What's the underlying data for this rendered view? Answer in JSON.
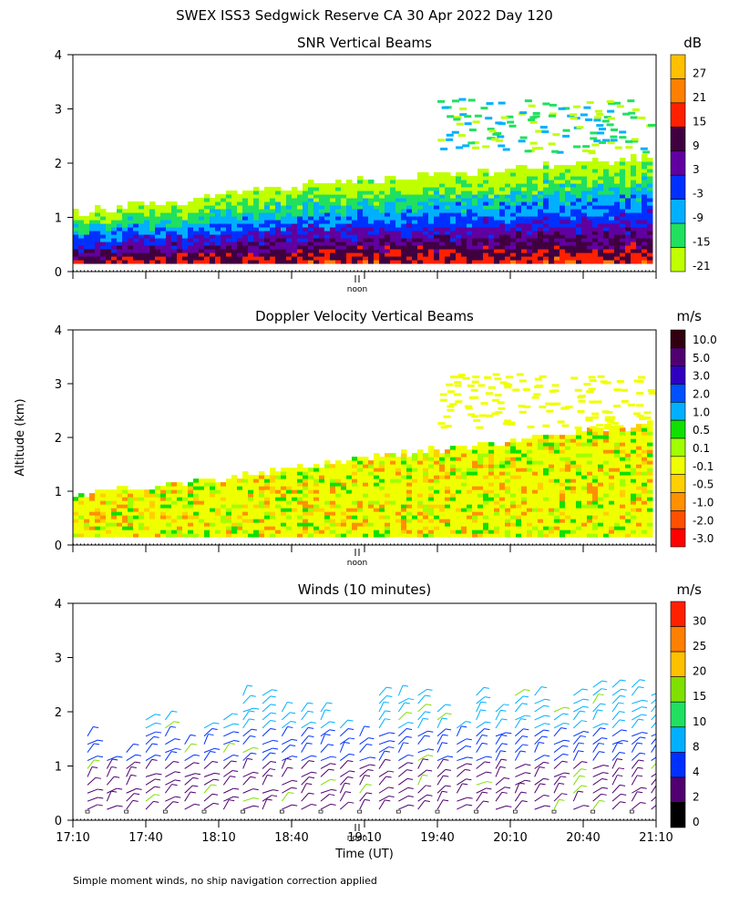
{
  "page_title": "SWEX ISS3 Sedgwick Reserve CA  30 Apr 2022 Day 120",
  "y_axis_label": "Altitude (km)",
  "x_axis_label": "Time (UT)",
  "footnote": "Simple moment winds, no ship navigation correction applied",
  "noon_label": "noon",
  "chart_data": [
    {
      "type": "heatmap",
      "title": "SNR Vertical Beams",
      "units": "dB",
      "ylim": [
        0,
        4
      ],
      "yticks": [
        0,
        1,
        2,
        3,
        4
      ],
      "xlim_minutes_utc": [
        1030,
        1270
      ],
      "colorbar": {
        "labels": [
          "27",
          "21",
          "15",
          "9",
          "3",
          "-3",
          "-9",
          "-15",
          "-21"
        ],
        "colors": [
          "#ffc000",
          "#ff8000",
          "#ff2000",
          "#400040",
          "#6000a0",
          "#0030ff",
          "#00b0ff",
          "#20e060",
          "#c0ff00"
        ]
      },
      "fill_colors": [
        "#c0ff00",
        "#20e060",
        "#00b0ff",
        "#0030ff",
        "#6000a0",
        "#400040",
        "#ff2000",
        "#ff8000"
      ],
      "top_km": [
        [
          1030,
          1.05
        ],
        [
          1060,
          1.2
        ],
        [
          1090,
          1.35
        ],
        [
          1120,
          1.55
        ],
        [
          1150,
          1.65
        ],
        [
          1180,
          1.75
        ],
        [
          1210,
          1.85
        ],
        [
          1240,
          2.0
        ],
        [
          1267,
          2.05
        ]
      ]
    },
    {
      "type": "heatmap",
      "title": "Doppler Velocity Vertical Beams",
      "units": "m/s",
      "ylim": [
        0,
        4
      ],
      "yticks": [
        0,
        1,
        2,
        3,
        4
      ],
      "xlim_minutes_utc": [
        1030,
        1270
      ],
      "colorbar": {
        "labels": [
          "10.0",
          "5.0",
          "3.0",
          "2.0",
          "1.0",
          "0.5",
          "0.1",
          "-0.1",
          "-0.5",
          "-1.0",
          "-2.0",
          "-3.0"
        ],
        "colors": [
          "#300010",
          "#500070",
          "#3000c0",
          "#0050ff",
          "#00b0ff",
          "#10e000",
          "#a0ff00",
          "#f0ff00",
          "#ffd000",
          "#ff9000",
          "#ff5000",
          "#ff0000"
        ]
      },
      "fill_colors": [
        "#f0ff00",
        "#ffd000",
        "#ff9000",
        "#a0ff00",
        "#10e000"
      ],
      "top_km": [
        [
          1030,
          0.95
        ],
        [
          1060,
          1.05
        ],
        [
          1090,
          1.2
        ],
        [
          1120,
          1.4
        ],
        [
          1150,
          1.6
        ],
        [
          1180,
          1.75
        ],
        [
          1210,
          1.9
        ],
        [
          1240,
          2.1
        ],
        [
          1267,
          2.2
        ]
      ]
    },
    {
      "type": "barbs",
      "title": "Winds (10 minutes)",
      "units": "m/s",
      "ylim": [
        0,
        4
      ],
      "yticks": [
        0,
        1,
        2,
        3,
        4
      ],
      "xlim_minutes_utc": [
        1030,
        1270
      ],
      "colorbar": {
        "labels": [
          "30",
          "25",
          "20",
          "15",
          "10",
          "8",
          "4",
          "2",
          "0"
        ],
        "colors": [
          "#ff2000",
          "#ff8000",
          "#ffc000",
          "#80e000",
          "#20e060",
          "#00b0ff",
          "#0030ff",
          "#500070",
          "#000000"
        ]
      },
      "barb_levels_km": [
        0.2,
        0.35,
        0.5,
        0.65,
        0.8,
        0.95,
        1.1,
        1.25,
        1.4,
        1.55,
        1.7,
        1.85,
        2.0,
        2.15,
        2.3,
        2.45
      ],
      "profile_top_km": [
        1.6,
        1.1,
        1.3,
        1.9,
        1.9,
        1.5,
        1.7,
        1.9,
        2.3,
        2.3,
        2.0,
        2.0,
        2.1,
        1.8,
        1.6,
        2.3,
        2.3,
        2.3,
        2.0,
        1.8,
        2.4,
        2.1,
        2.3,
        2.3,
        2.1,
        2.3,
        2.7,
        2.7,
        2.6,
        2.4
      ]
    }
  ],
  "x_ticks": [
    "17:10",
    "17:40",
    "18:10",
    "18:40",
    "19:10",
    "19:40",
    "20:10",
    "20:40",
    "21:10"
  ],
  "x_tick_minutes": [
    1030,
    1060,
    1090,
    1120,
    1150,
    1180,
    1210,
    1240,
    1270
  ],
  "noon_minutes_utc": 1147
}
